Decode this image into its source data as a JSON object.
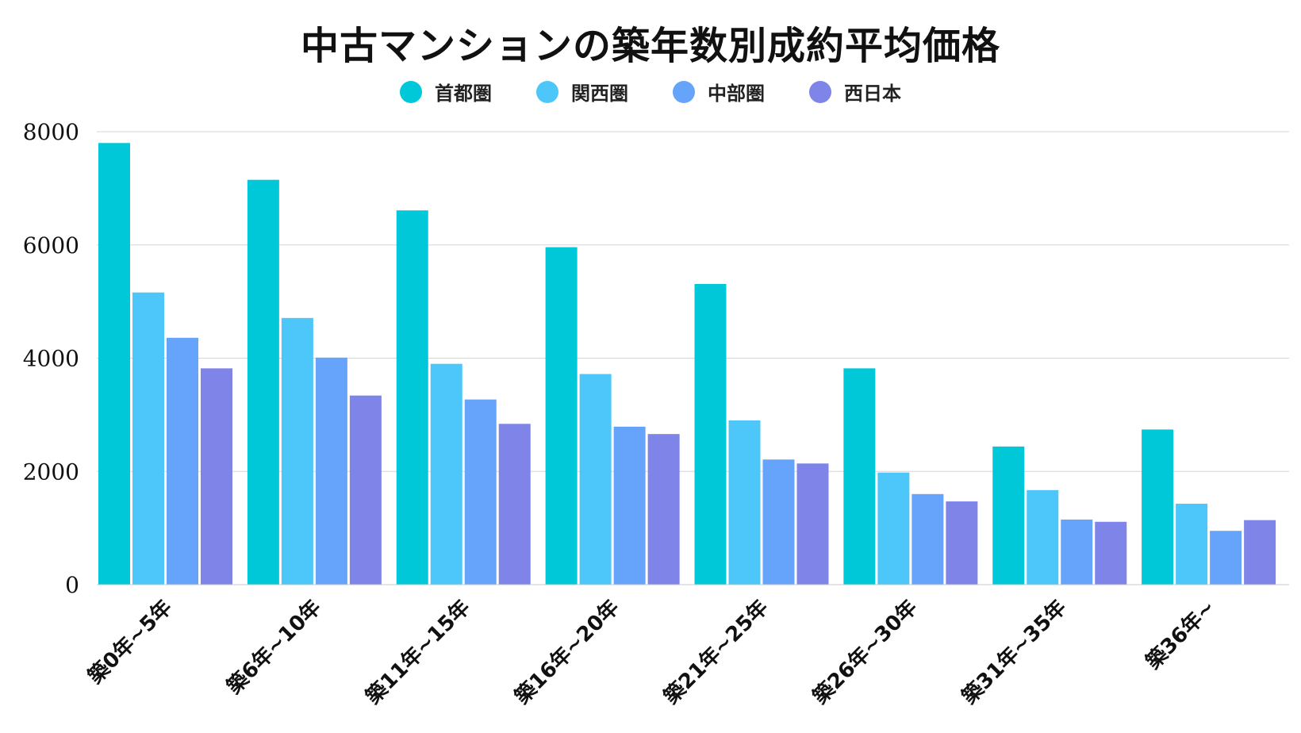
{
  "chart_data": {
    "type": "bar",
    "title": "中古マンションの築年数別成約平均価格",
    "xlabel": "",
    "ylabel": "",
    "ylim": [
      0,
      8000
    ],
    "yticks": [
      0,
      2000,
      4000,
      6000,
      8000
    ],
    "grid": true,
    "legend_position": "top-center",
    "categories": [
      "築0年~5年",
      "築6年~10年",
      "築11年~15年",
      "築16年~20年",
      "築21年~25年",
      "築26年~30年",
      "築31年~35年",
      "築36年~"
    ],
    "series": [
      {
        "name": "首都圏",
        "color": "#00c8d8",
        "values": [
          7800,
          7150,
          6610,
          5960,
          5310,
          3820,
          2440,
          2740
        ]
      },
      {
        "name": "関西圏",
        "color": "#4dc6f9",
        "values": [
          5160,
          4710,
          3900,
          3720,
          2900,
          1980,
          1670,
          1430
        ]
      },
      {
        "name": "中部圏",
        "color": "#66a3fa",
        "values": [
          4360,
          4010,
          3270,
          2790,
          2210,
          1600,
          1150,
          950
        ]
      },
      {
        "name": "西日本",
        "color": "#7f84e8",
        "values": [
          3820,
          3340,
          2840,
          2660,
          2140,
          1470,
          1110,
          1140
        ]
      }
    ]
  }
}
